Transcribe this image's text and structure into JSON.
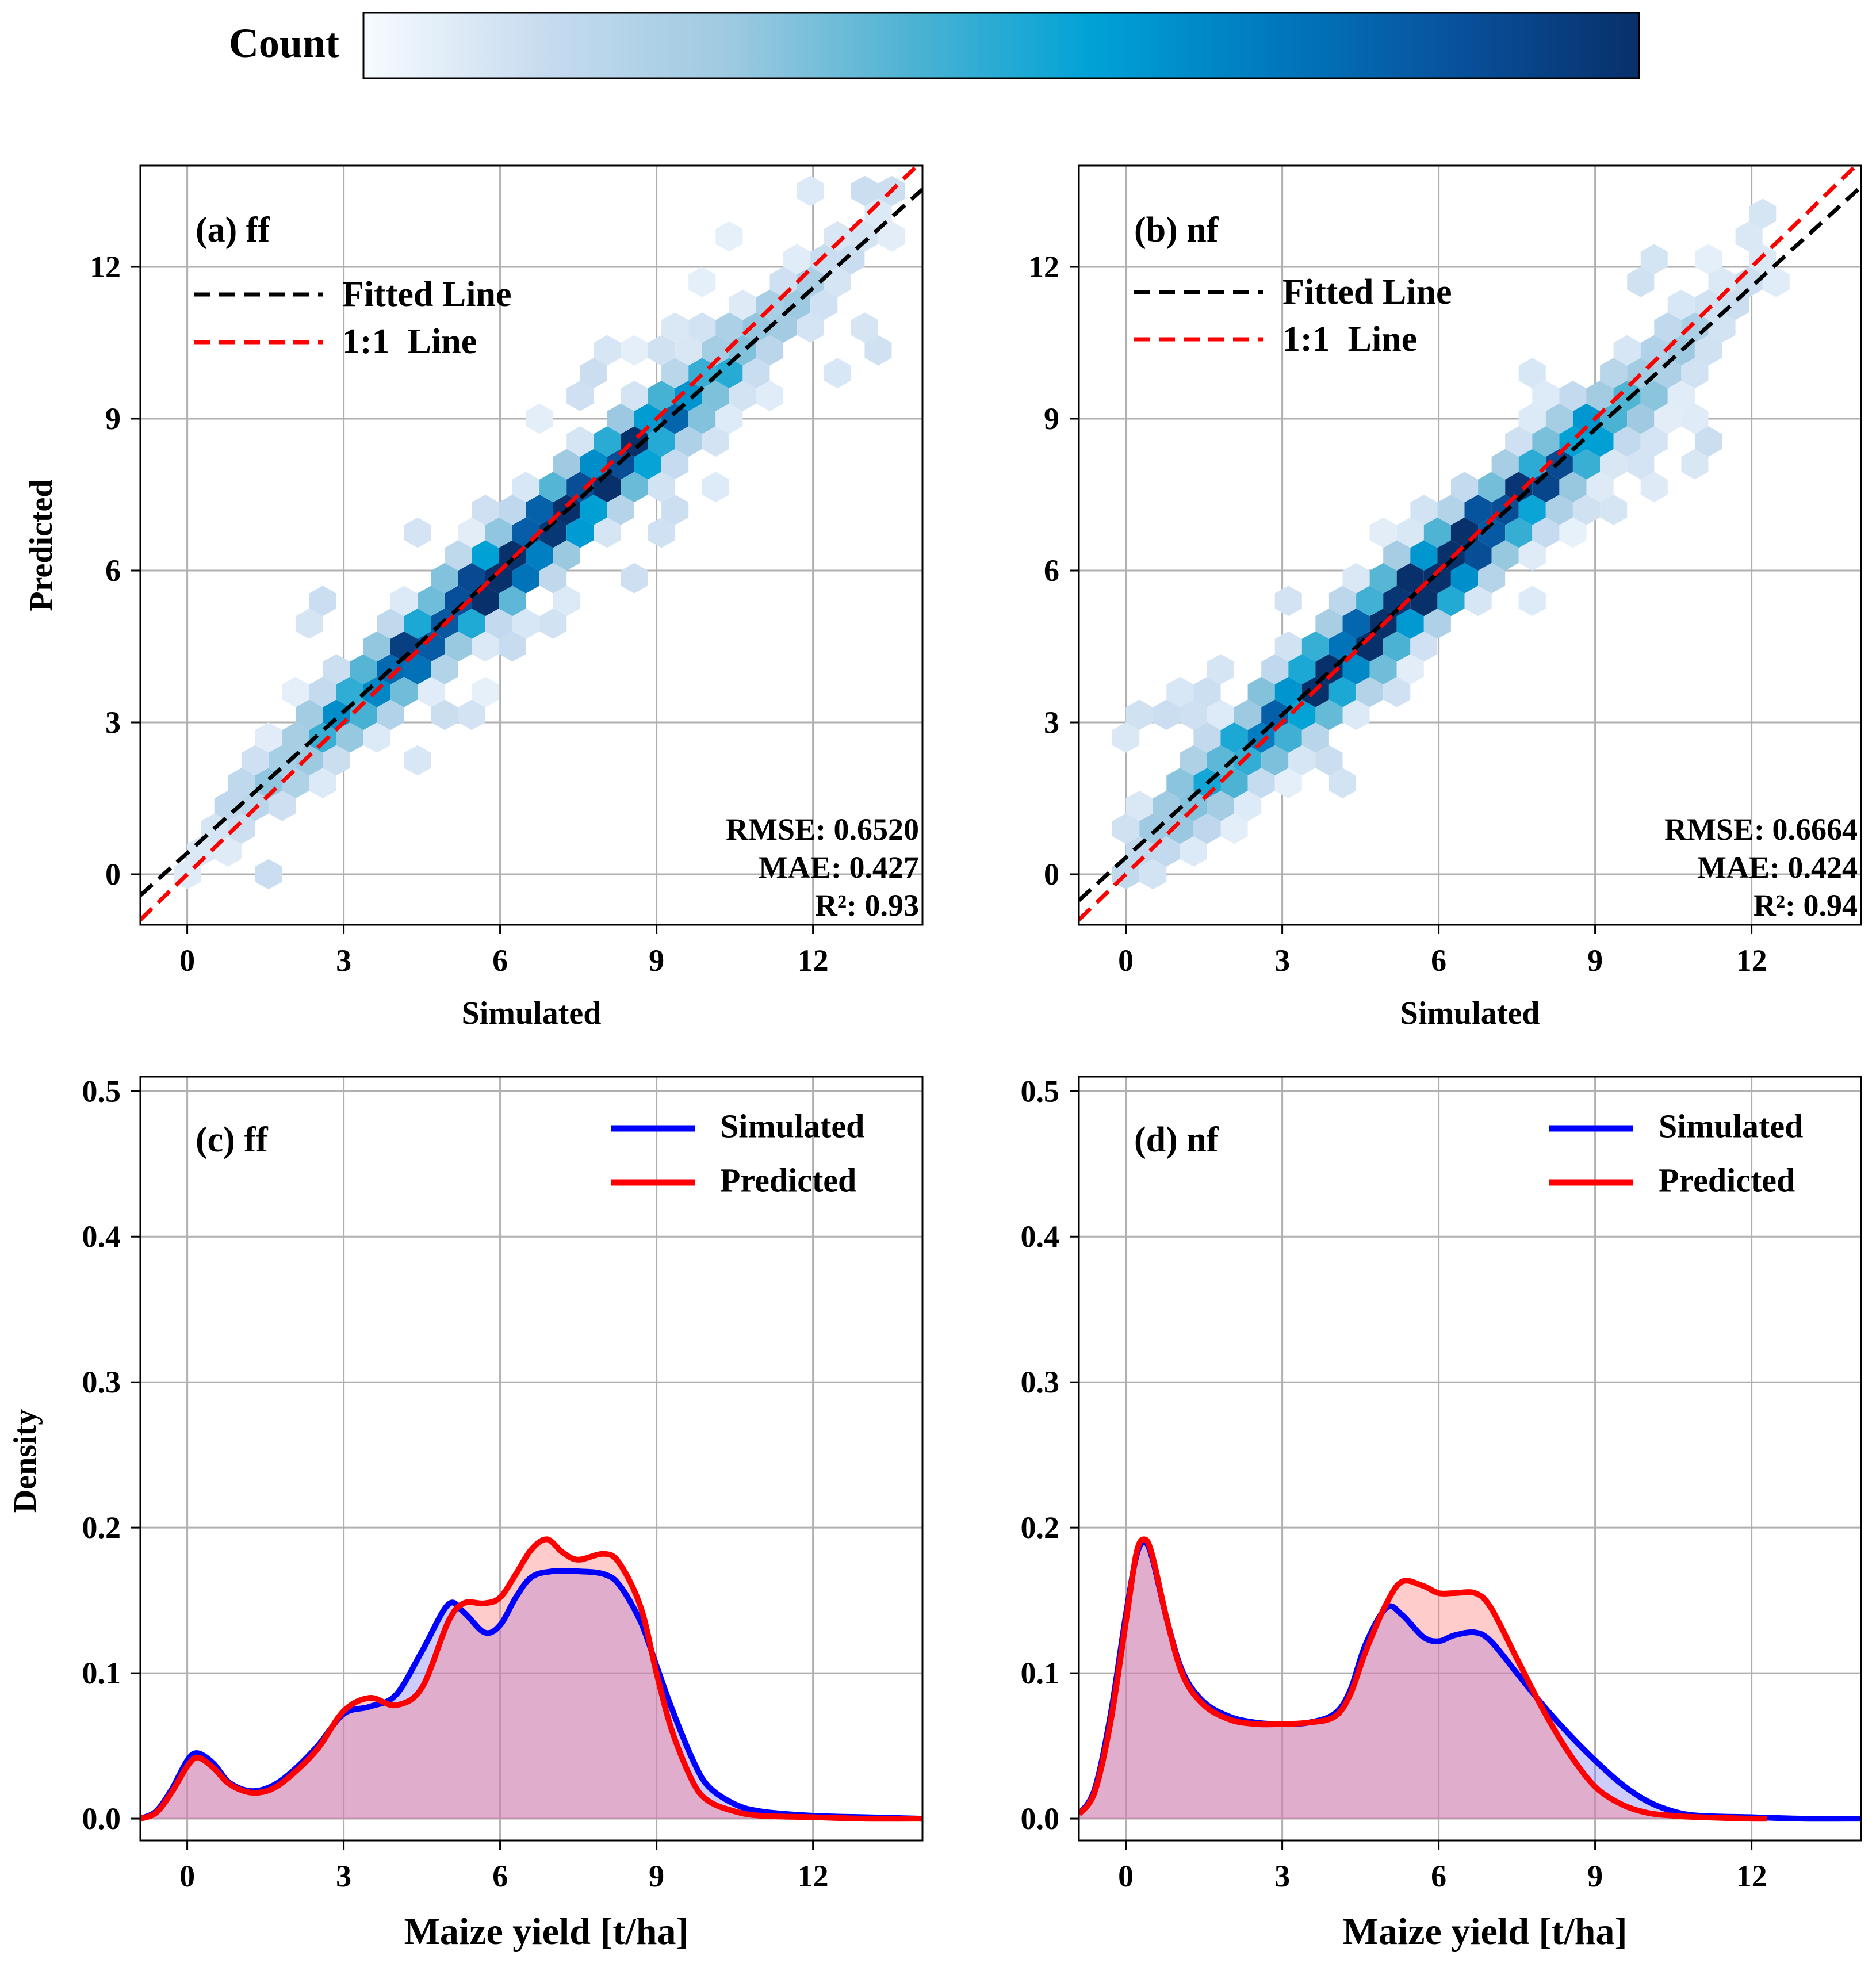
{
  "colorbar": {
    "label": "Count",
    "colors": [
      "#f7fbff",
      "#c6dbef",
      "#9ecae1",
      "#4eb3d3",
      "#00a2d6",
      "#0079be",
      "#08519c",
      "#08306b"
    ]
  },
  "palette": {
    "fitted": "#000000",
    "one_to_one": "#ff0000",
    "simulated": "#0000ff",
    "predicted": "#ff0000",
    "fill_sim": "#8080ff",
    "fill_pred": "#ff8080",
    "grid": "#b0b0b0"
  },
  "chart_data": [
    {
      "id": "a",
      "type": "hexbin",
      "title": "(a) ff",
      "xlabel": "Simulated",
      "ylabel": "Predicted",
      "xlim": [
        -0.9,
        14.1
      ],
      "ylim": [
        -1.0,
        14.0
      ],
      "xticks": [
        0,
        3,
        6,
        9,
        12
      ],
      "yticks": [
        0,
        3,
        6,
        9,
        12
      ],
      "legend": {
        "position": "top-left",
        "entries": [
          "Fitted Line",
          "1:1  Line"
        ]
      },
      "fitted_line": {
        "slope": 0.93,
        "intercept": 0.42
      },
      "one_to_one": {
        "slope": 1,
        "intercept": 0
      },
      "metrics": [
        "RMSE: 0.6520",
        "MAE: 0.427",
        "R²: 0.93"
      ]
    },
    {
      "id": "b",
      "type": "hexbin",
      "title": "(b) nf",
      "xlabel": "Simulated",
      "ylabel": "",
      "xlim": [
        -0.9,
        14.1
      ],
      "ylim": [
        -1.0,
        14.0
      ],
      "xticks": [
        0,
        3,
        6,
        9,
        12
      ],
      "yticks": [
        0,
        3,
        6,
        9,
        12
      ],
      "legend": {
        "position": "top-left",
        "entries": [
          "Fitted Line",
          "1:1  Line"
        ]
      },
      "fitted_line": {
        "slope": 0.94,
        "intercept": 0.33
      },
      "one_to_one": {
        "slope": 1,
        "intercept": 0
      },
      "metrics": [
        "RMSE: 0.6664",
        "MAE: 0.424",
        "R²: 0.94"
      ]
    },
    {
      "id": "c",
      "type": "area",
      "title": "(c) ff",
      "xlabel": "Maize yield [t/ha]",
      "ylabel": "Density",
      "xlim": [
        -0.9,
        14.1
      ],
      "ylim": [
        -0.015,
        0.51
      ],
      "xticks": [
        0,
        3,
        6,
        9,
        12
      ],
      "yticks": [
        0.0,
        0.1,
        0.2,
        0.3,
        0.4,
        0.5
      ],
      "ytick_labels": [
        "0.0",
        "0.1",
        "0.2",
        "0.3",
        "0.4",
        "0.5"
      ],
      "legend": {
        "position": "top-right",
        "entries": [
          "Simulated",
          "Predicted"
        ]
      },
      "series": [
        {
          "name": "Simulated",
          "x": [
            -0.9,
            -0.6,
            -0.3,
            0,
            0.2,
            0.5,
            0.8,
            1.2,
            1.6,
            2.0,
            2.5,
            3.0,
            3.5,
            4.0,
            4.5,
            5.0,
            5.3,
            5.7,
            6.0,
            6.3,
            6.6,
            7.0,
            7.5,
            8.0,
            8.3,
            8.7,
            9.0,
            9.3,
            9.7,
            10.0,
            10.5,
            11.0,
            12.0,
            13.0,
            14.1
          ],
          "values": [
            0.0,
            0.005,
            0.02,
            0.04,
            0.045,
            0.038,
            0.025,
            0.019,
            0.022,
            0.032,
            0.05,
            0.072,
            0.077,
            0.085,
            0.115,
            0.147,
            0.142,
            0.128,
            0.133,
            0.152,
            0.166,
            0.17,
            0.17,
            0.168,
            0.16,
            0.135,
            0.105,
            0.075,
            0.04,
            0.022,
            0.01,
            0.005,
            0.002,
            0.001,
            0.0
          ]
        },
        {
          "name": "Predicted",
          "x": [
            -0.9,
            -0.6,
            -0.3,
            0,
            0.2,
            0.5,
            0.8,
            1.2,
            1.6,
            2.0,
            2.5,
            3.0,
            3.5,
            4.0,
            4.5,
            5.0,
            5.3,
            5.7,
            6.0,
            6.3,
            6.6,
            6.9,
            7.2,
            7.5,
            8.0,
            8.3,
            8.7,
            9.0,
            9.3,
            9.7,
            10.0,
            10.5,
            11.0,
            12.0,
            13.0,
            14.1
          ],
          "values": [
            0.0,
            0.004,
            0.018,
            0.036,
            0.042,
            0.035,
            0.024,
            0.018,
            0.02,
            0.03,
            0.048,
            0.074,
            0.083,
            0.078,
            0.09,
            0.135,
            0.148,
            0.148,
            0.152,
            0.168,
            0.185,
            0.192,
            0.183,
            0.178,
            0.182,
            0.175,
            0.145,
            0.1,
            0.06,
            0.025,
            0.012,
            0.005,
            0.002,
            0.001,
            0.0,
            0.0
          ]
        }
      ]
    },
    {
      "id": "d",
      "type": "area",
      "title": "(d) nf",
      "xlabel": "Maize yield [t/ha]",
      "ylabel": "",
      "xlim": [
        -0.9,
        14.1
      ],
      "ylim": [
        -0.015,
        0.51
      ],
      "xticks": [
        0,
        3,
        6,
        9,
        12
      ],
      "yticks": [
        0.0,
        0.1,
        0.2,
        0.3,
        0.4,
        0.5
      ],
      "ytick_labels": [
        "0.0",
        "0.1",
        "0.2",
        "0.3",
        "0.4",
        "0.5"
      ],
      "legend": {
        "position": "top-right",
        "entries": [
          "Simulated",
          "Predicted"
        ]
      },
      "series": [
        {
          "name": "Simulated",
          "x": [
            -0.9,
            -0.6,
            -0.3,
            0,
            0.2,
            0.35,
            0.5,
            0.8,
            1.1,
            1.5,
            2.0,
            2.5,
            3.0,
            3.5,
            4.0,
            4.3,
            4.6,
            5.0,
            5.3,
            5.7,
            6.0,
            6.3,
            6.7,
            7.0,
            7.5,
            8.0,
            8.5,
            9.0,
            9.5,
            10.0,
            10.5,
            11.0,
            12.0,
            13.0,
            14.1
          ],
          "values": [
            0.003,
            0.02,
            0.07,
            0.14,
            0.18,
            0.19,
            0.18,
            0.135,
            0.1,
            0.08,
            0.07,
            0.066,
            0.065,
            0.066,
            0.072,
            0.088,
            0.12,
            0.145,
            0.14,
            0.125,
            0.122,
            0.126,
            0.128,
            0.122,
            0.1,
            0.078,
            0.058,
            0.04,
            0.024,
            0.012,
            0.005,
            0.002,
            0.001,
            0.0,
            0.0
          ]
        },
        {
          "name": "Predicted",
          "x": [
            -0.9,
            -0.6,
            -0.3,
            0,
            0.2,
            0.35,
            0.5,
            0.8,
            1.1,
            1.5,
            2.0,
            2.5,
            3.0,
            3.5,
            4.0,
            4.3,
            4.6,
            5.0,
            5.3,
            5.7,
            6.0,
            6.3,
            6.7,
            7.0,
            7.5,
            8.0,
            8.5,
            9.0,
            9.5,
            10.0,
            10.5,
            11.0,
            12.0,
            12.3
          ],
          "values": [
            0.003,
            0.018,
            0.065,
            0.135,
            0.182,
            0.192,
            0.182,
            0.135,
            0.098,
            0.078,
            0.068,
            0.065,
            0.065,
            0.066,
            0.07,
            0.085,
            0.115,
            0.148,
            0.163,
            0.16,
            0.155,
            0.155,
            0.155,
            0.145,
            0.11,
            0.075,
            0.045,
            0.022,
            0.01,
            0.004,
            0.002,
            0.001,
            0.0,
            0.0
          ]
        }
      ]
    }
  ]
}
